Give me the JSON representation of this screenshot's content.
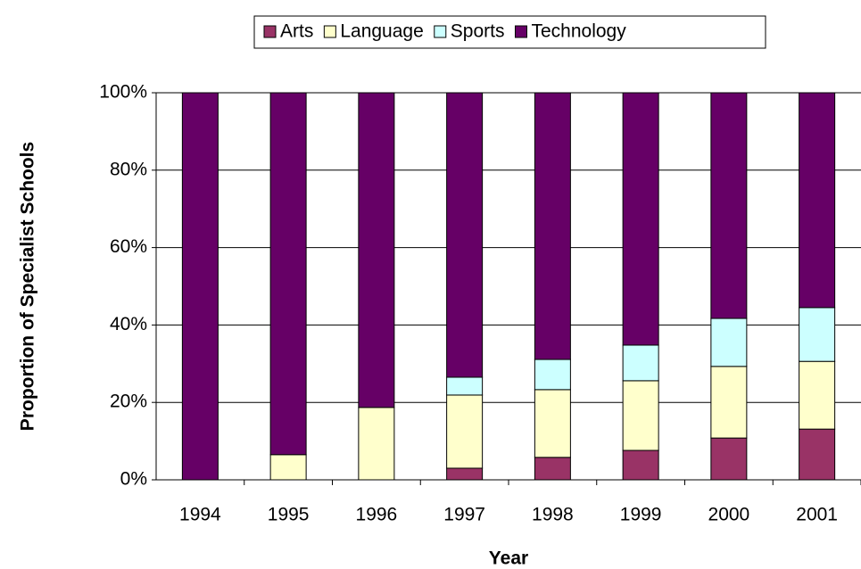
{
  "chart_data": {
    "type": "stacked_bar",
    "categories": [
      "1994",
      "1995",
      "1996",
      "1997",
      "1998",
      "1999",
      "2000",
      "2001"
    ],
    "series": [
      {
        "name": "Arts",
        "color": "#993366",
        "values": [
          0,
          0,
          0,
          3,
          5.8,
          7.6,
          10.8,
          13.1
        ]
      },
      {
        "name": "Language",
        "color": "#ffffcc",
        "values": [
          0,
          6.5,
          18.7,
          18.9,
          17.5,
          18,
          18.5,
          17.5
        ]
      },
      {
        "name": "Sports",
        "color": "#ccffff",
        "values": [
          0,
          0,
          0,
          4.6,
          7.8,
          9.2,
          12.4,
          13.9
        ]
      },
      {
        "name": "Technology",
        "color": "#660066",
        "values": [
          100,
          93.5,
          81.3,
          73.5,
          68.9,
          65.2,
          58.3,
          55.5
        ]
      }
    ],
    "xlabel": "Year",
    "ylabel": "Proportion of Specialist Schools",
    "ylim": [
      0,
      100
    ],
    "yticks": [
      {
        "value": 0,
        "label": "0%"
      },
      {
        "value": 20,
        "label": "20%"
      },
      {
        "value": 40,
        "label": "40%"
      },
      {
        "value": 60,
        "label": "60%"
      },
      {
        "value": 80,
        "label": "80%"
      },
      {
        "value": 100,
        "label": "100%"
      }
    ],
    "grid": true,
    "legend": "top"
  }
}
